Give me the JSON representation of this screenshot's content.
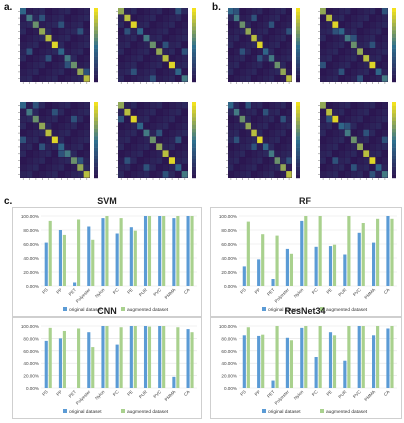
{
  "panels": {
    "a_label": "a.",
    "b_label": "b.",
    "c_label": "c."
  },
  "heatmap_colors": {
    "low": "#2b0d4a",
    "mid": "#2f6f8e",
    "high": "#f2e11d"
  },
  "bar_colors": {
    "original": "#5b9bd5",
    "augmented": "#a9d18e"
  },
  "chart_data": [
    {
      "type": "bar",
      "title": "SVM",
      "categories": [
        "PS",
        "PP",
        "PET",
        "Polyester",
        "Nylon",
        "PC",
        "PE",
        "PUR",
        "PVC",
        "PMMA",
        "CA"
      ],
      "series": [
        {
          "name": "original dataset",
          "values": [
            62,
            80,
            5,
            85,
            97,
            75,
            84,
            100,
            100,
            97,
            100
          ]
        },
        {
          "name": "augmented dataset",
          "values": [
            93,
            73,
            95,
            66,
            100,
            97,
            79,
            100,
            100,
            100,
            100
          ]
        }
      ],
      "ylim": [
        0,
        100
      ],
      "yticks": [
        "0.00%",
        "20.00%",
        "40.00%",
        "60.00%",
        "80.00%",
        "100.00%"
      ]
    },
    {
      "type": "bar",
      "title": "RF",
      "categories": [
        "PS",
        "PP",
        "PET",
        "Polyester",
        "Nylon",
        "PC",
        "PE",
        "PUR",
        "PVC",
        "PMMA",
        "CA"
      ],
      "series": [
        {
          "name": "original dataset",
          "values": [
            28,
            38,
            10,
            53,
            93,
            56,
            57,
            45,
            76,
            62,
            100
          ]
        },
        {
          "name": "augmented dataset",
          "values": [
            92,
            74,
            72,
            46,
            100,
            100,
            59,
            100,
            90,
            96,
            96
          ]
        }
      ],
      "ylim": [
        0,
        100
      ],
      "yticks": [
        "0.00%",
        "20.00%",
        "40.00%",
        "60.00%",
        "80.00%",
        "100.00%"
      ]
    },
    {
      "type": "bar",
      "title": "CNN",
      "categories": [
        "PS",
        "PP",
        "PET",
        "Polyester",
        "Nylon",
        "PC",
        "PE",
        "PUR",
        "PVC",
        "PMMA",
        "CA"
      ],
      "series": [
        {
          "name": "original dataset",
          "values": [
            76,
            80,
            0,
            90,
            100,
            70,
            100,
            100,
            100,
            18,
            95
          ]
        },
        {
          "name": "augmented dataset",
          "values": [
            97,
            92,
            96,
            66,
            100,
            98,
            100,
            99,
            100,
            98,
            90
          ]
        }
      ],
      "ylim": [
        0,
        100
      ],
      "yticks": [
        "0.00%",
        "20.00%",
        "40.00%",
        "60.00%",
        "80.00%",
        "100.00%"
      ]
    },
    {
      "type": "bar",
      "title": "ResNet34",
      "categories": [
        "PS",
        "PP",
        "PET",
        "Polyester",
        "Nylon",
        "PC",
        "PE",
        "PUR",
        "PVC",
        "PMMA",
        "CA"
      ],
      "series": [
        {
          "name": "original dataset",
          "values": [
            85,
            84,
            12,
            81,
            97,
            50,
            90,
            44,
            100,
            85,
            96
          ]
        },
        {
          "name": "augmented dataset",
          "values": [
            98,
            86,
            100,
            77,
            100,
            100,
            85,
            100,
            100,
            100,
            100
          ]
        }
      ],
      "ylim": [
        0,
        100
      ],
      "yticks": [
        "0.00%",
        "20.00%",
        "40.00%",
        "60.00%",
        "80.00%",
        "100.00%"
      ]
    }
  ]
}
